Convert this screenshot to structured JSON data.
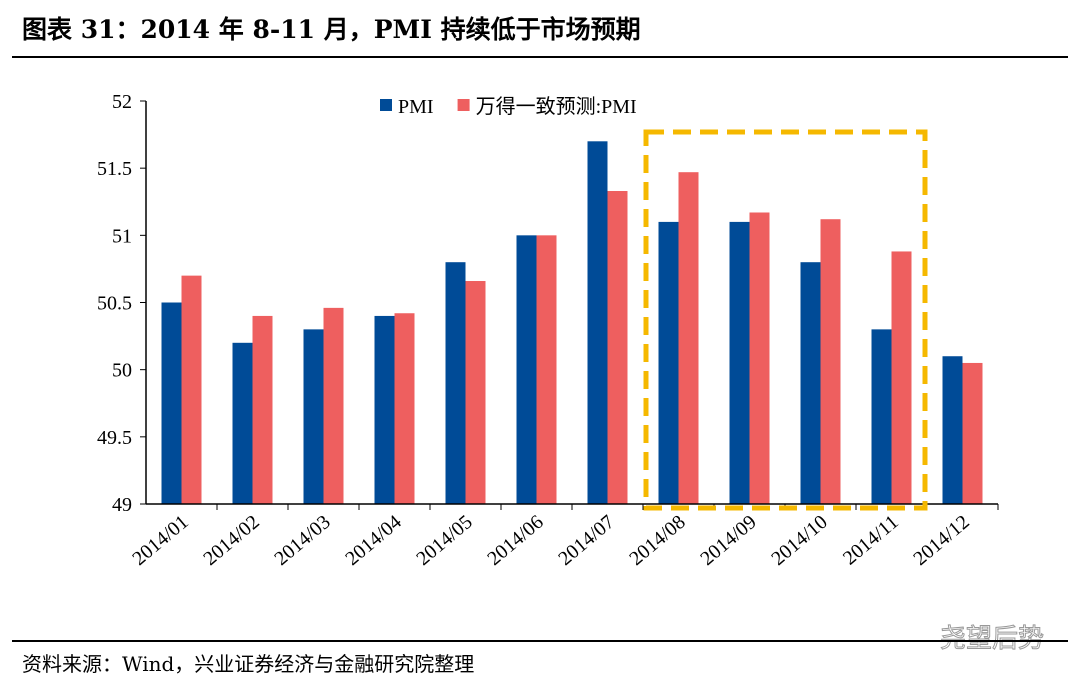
{
  "title": "图表 31：2014 年 8-11 月，PMI 持续低于市场预期",
  "source": "资料来源：Wind，兴业证券经济与金融研究院整理",
  "watermark": "尧望后势",
  "colors": {
    "pmi": "#004B97",
    "consensus": "#EE5F5F",
    "highlight": "#F5B800"
  },
  "chart_data": {
    "type": "bar",
    "categories": [
      "2014/01",
      "2014/02",
      "2014/03",
      "2014/04",
      "2014/05",
      "2014/06",
      "2014/07",
      "2014/08",
      "2014/09",
      "2014/10",
      "2014/11",
      "2014/12"
    ],
    "series": [
      {
        "name": "PMI",
        "values": [
          50.5,
          50.2,
          50.3,
          50.4,
          50.8,
          51.0,
          51.7,
          51.1,
          51.1,
          50.8,
          50.3,
          50.1
        ]
      },
      {
        "name": "万得一致预测:PMI",
        "values": [
          50.7,
          50.4,
          50.46,
          50.42,
          50.66,
          51.0,
          51.33,
          51.47,
          51.17,
          51.12,
          50.88,
          50.05
        ]
      }
    ],
    "ylim": [
      49,
      52
    ],
    "yticks": [
      "49",
      "49.5",
      "50",
      "50.5",
      "51",
      "51.5",
      "52"
    ],
    "legend": "top-center",
    "highlight_range": [
      "2014/08",
      "2014/11"
    ]
  }
}
